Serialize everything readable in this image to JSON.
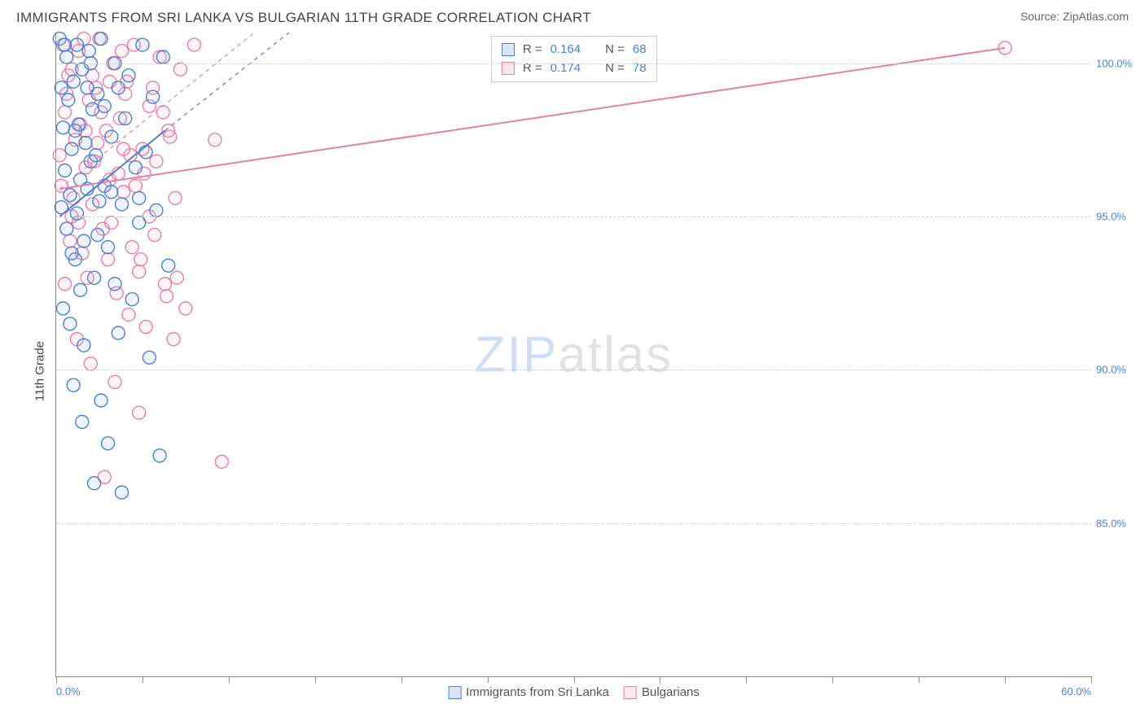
{
  "title": "IMMIGRANTS FROM SRI LANKA VS BULGARIAN 11TH GRADE CORRELATION CHART",
  "source_label": "Source: ZipAtlas.com",
  "ylabel": "11th Grade",
  "watermark": {
    "part1": "ZIP",
    "part2": "atlas"
  },
  "chart": {
    "type": "scatter",
    "background_color": "#ffffff",
    "grid_color": "#d0d0d0",
    "axis_color": "#888888",
    "tick_label_color": "#4a7fd8",
    "xlim": [
      0.0,
      60.0
    ],
    "ylim": [
      80.0,
      101.0
    ],
    "yticks": [
      85.0,
      90.0,
      95.0,
      100.0
    ],
    "ytick_labels": [
      "85.0%",
      "90.0%",
      "95.0%",
      "100.0%"
    ],
    "xtick_positions": [
      0,
      5,
      10,
      15,
      20,
      25,
      30,
      35,
      40,
      45,
      50,
      55,
      60
    ],
    "x_axis_labels": {
      "min": "0.0%",
      "max": "60.0%"
    },
    "tick_fontsize": 13,
    "ylabel_fontsize": 15,
    "marker_radius": 8,
    "marker_stroke_width": 1.4,
    "marker_fill_opacity": 0.15,
    "trend_line_width": 2.0,
    "trend_dash_width": 1.2
  },
  "series_a": {
    "label": "Immigrants from Sri Lanka",
    "color_stroke": "#4a7fd8",
    "color_fill": "#8fb3ea",
    "R_label": "R =",
    "R_value": "0.164",
    "N_label": "N =",
    "N_value": "68",
    "trend_solid": {
      "x1": 0.2,
      "y1": 95.0,
      "x2": 6.3,
      "y2": 97.8
    },
    "trend_dash": {
      "x1": 6.3,
      "y1": 97.8,
      "x2": 13.5,
      "y2": 101.0
    },
    "points": [
      [
        0.3,
        95.3
      ],
      [
        0.4,
        97.9
      ],
      [
        0.5,
        96.5
      ],
      [
        0.6,
        94.6
      ],
      [
        0.7,
        98.8
      ],
      [
        0.8,
        95.7
      ],
      [
        0.9,
        97.2
      ],
      [
        1.0,
        99.4
      ],
      [
        1.1,
        93.6
      ],
      [
        1.2,
        95.1
      ],
      [
        1.3,
        98.0
      ],
      [
        1.4,
        96.2
      ],
      [
        1.5,
        99.8
      ],
      [
        1.6,
        94.2
      ],
      [
        1.7,
        97.4
      ],
      [
        1.8,
        95.9
      ],
      [
        1.9,
        100.4
      ],
      [
        2.0,
        96.8
      ],
      [
        2.1,
        98.5
      ],
      [
        2.2,
        93.0
      ],
      [
        2.3,
        97.0
      ],
      [
        2.4,
        99.0
      ],
      [
        2.5,
        95.5
      ],
      [
        2.6,
        100.8
      ],
      [
        2.8,
        96.0
      ],
      [
        3.0,
        94.0
      ],
      [
        3.2,
        97.6
      ],
      [
        3.4,
        100.0
      ],
      [
        3.6,
        91.2
      ],
      [
        3.8,
        95.4
      ],
      [
        4.0,
        98.2
      ],
      [
        4.2,
        99.6
      ],
      [
        4.4,
        92.3
      ],
      [
        4.6,
        96.6
      ],
      [
        4.8,
        94.8
      ],
      [
        5.0,
        100.6
      ],
      [
        5.2,
        97.1
      ],
      [
        5.4,
        90.4
      ],
      [
        5.6,
        98.9
      ],
      [
        5.8,
        95.2
      ],
      [
        6.0,
        87.2
      ],
      [
        6.2,
        100.2
      ],
      [
        6.5,
        93.4
      ],
      [
        1.0,
        89.5
      ],
      [
        1.5,
        88.3
      ],
      [
        2.2,
        86.3
      ],
      [
        3.0,
        87.6
      ],
      [
        3.8,
        86.0
      ],
      [
        0.4,
        92.0
      ],
      [
        0.8,
        91.5
      ],
      [
        1.6,
        90.8
      ],
      [
        0.2,
        100.8
      ],
      [
        0.6,
        100.2
      ],
      [
        1.2,
        100.6
      ],
      [
        2.0,
        100.0
      ],
      [
        2.8,
        98.6
      ],
      [
        3.6,
        99.2
      ],
      [
        4.8,
        95.6
      ],
      [
        0.3,
        99.2
      ],
      [
        0.9,
        93.8
      ],
      [
        1.4,
        92.6
      ],
      [
        2.6,
        89.0
      ],
      [
        3.4,
        92.8
      ],
      [
        0.5,
        100.6
      ],
      [
        1.1,
        97.8
      ],
      [
        1.8,
        99.2
      ],
      [
        2.4,
        94.4
      ],
      [
        3.2,
        95.8
      ]
    ]
  },
  "series_b": {
    "label": "Bulgarians",
    "color_stroke": "#e67fa3",
    "color_fill": "#f4b6cb",
    "R_label": "R =",
    "R_value": "0.174",
    "N_label": "N =",
    "N_value": "78",
    "trend_solid": {
      "x1": 0.2,
      "y1": 95.9,
      "x2": 55.0,
      "y2": 100.5
    },
    "trend_dash": {
      "x1": 0.2,
      "y1": 95.9,
      "x2": 11.5,
      "y2": 101.0
    },
    "points": [
      [
        55.0,
        100.5
      ],
      [
        0.3,
        96.0
      ],
      [
        0.5,
        98.4
      ],
      [
        0.7,
        99.6
      ],
      [
        0.9,
        95.0
      ],
      [
        1.1,
        97.5
      ],
      [
        1.3,
        100.4
      ],
      [
        1.5,
        93.8
      ],
      [
        1.7,
        96.6
      ],
      [
        1.9,
        98.8
      ],
      [
        2.1,
        95.4
      ],
      [
        2.3,
        99.2
      ],
      [
        2.5,
        100.8
      ],
      [
        2.7,
        94.6
      ],
      [
        2.9,
        97.8
      ],
      [
        3.1,
        96.2
      ],
      [
        3.3,
        100.0
      ],
      [
        3.5,
        92.5
      ],
      [
        3.7,
        98.2
      ],
      [
        3.9,
        95.8
      ],
      [
        4.1,
        99.4
      ],
      [
        4.3,
        97.0
      ],
      [
        4.5,
        100.6
      ],
      [
        4.8,
        93.2
      ],
      [
        5.1,
        96.4
      ],
      [
        5.4,
        98.6
      ],
      [
        5.7,
        94.4
      ],
      [
        6.0,
        100.2
      ],
      [
        6.3,
        92.8
      ],
      [
        6.6,
        97.6
      ],
      [
        6.9,
        95.6
      ],
      [
        7.2,
        99.8
      ],
      [
        9.2,
        97.5
      ],
      [
        9.6,
        87.0
      ],
      [
        7.5,
        92.0
      ],
      [
        1.2,
        91.0
      ],
      [
        2.0,
        90.2
      ],
      [
        3.4,
        89.6
      ],
      [
        4.8,
        88.6
      ],
      [
        6.4,
        92.4
      ],
      [
        0.4,
        100.6
      ],
      [
        0.8,
        94.2
      ],
      [
        1.4,
        98.0
      ],
      [
        2.2,
        96.8
      ],
      [
        3.0,
        93.6
      ],
      [
        3.8,
        100.4
      ],
      [
        4.6,
        96.0
      ],
      [
        5.2,
        91.4
      ],
      [
        6.2,
        98.4
      ],
      [
        0.2,
        97.0
      ],
      [
        0.6,
        99.0
      ],
      [
        1.0,
        95.6
      ],
      [
        1.6,
        100.8
      ],
      [
        2.4,
        97.4
      ],
      [
        3.2,
        94.8
      ],
      [
        4.0,
        99.0
      ],
      [
        5.0,
        97.2
      ],
      [
        5.8,
        96.8
      ],
      [
        7.0,
        93.0
      ],
      [
        2.8,
        86.5
      ],
      [
        4.2,
        91.8
      ],
      [
        0.9,
        99.8
      ],
      [
        1.8,
        93.0
      ],
      [
        2.6,
        98.4
      ],
      [
        3.6,
        96.4
      ],
      [
        4.4,
        94.0
      ],
      [
        5.6,
        99.2
      ],
      [
        6.8,
        91.0
      ],
      [
        1.3,
        94.8
      ],
      [
        2.1,
        99.6
      ],
      [
        3.9,
        97.2
      ],
      [
        5.4,
        95.0
      ],
      [
        0.5,
        92.8
      ],
      [
        1.7,
        97.8
      ],
      [
        3.1,
        99.4
      ],
      [
        4.9,
        93.6
      ],
      [
        6.5,
        97.8
      ],
      [
        8.0,
        100.6
      ]
    ]
  },
  "bottom_legend": {
    "fontsize": 15
  }
}
